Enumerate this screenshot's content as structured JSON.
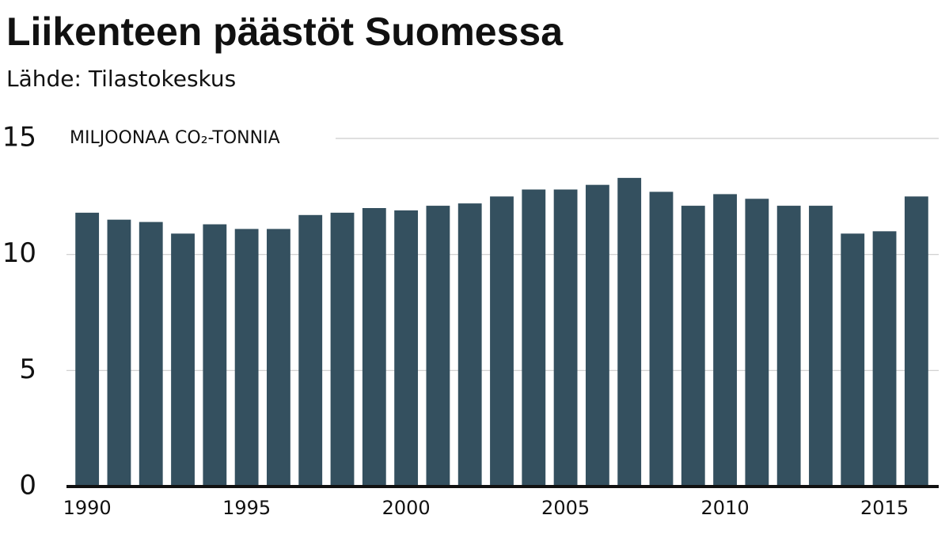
{
  "chart_data": {
    "type": "bar",
    "title": "Liikenteen päästöt Suomessa",
    "subtitle": "Lähde: Tilastokeskus",
    "y_label": "MILJOONAA CO₂-TONNIA",
    "categories": [
      "1990",
      null,
      null,
      null,
      null,
      "1995",
      null,
      null,
      null,
      null,
      "2000",
      null,
      null,
      null,
      null,
      "2005",
      null,
      null,
      null,
      null,
      "2010",
      null,
      null,
      null,
      null,
      "2015",
      null
    ],
    "values": [
      11.8,
      11.5,
      11.4,
      10.9,
      11.3,
      11.1,
      11.1,
      11.7,
      11.8,
      12.0,
      11.9,
      12.1,
      12.2,
      12.5,
      12.8,
      12.8,
      13.0,
      13.3,
      12.7,
      12.1,
      12.6,
      12.4,
      12.1,
      12.1,
      10.9,
      11.0,
      12.5
    ],
    "color": "#34505f",
    "ylim": [
      0,
      15
    ],
    "yticks": [
      0,
      5,
      10,
      15
    ],
    "grid": true
  }
}
